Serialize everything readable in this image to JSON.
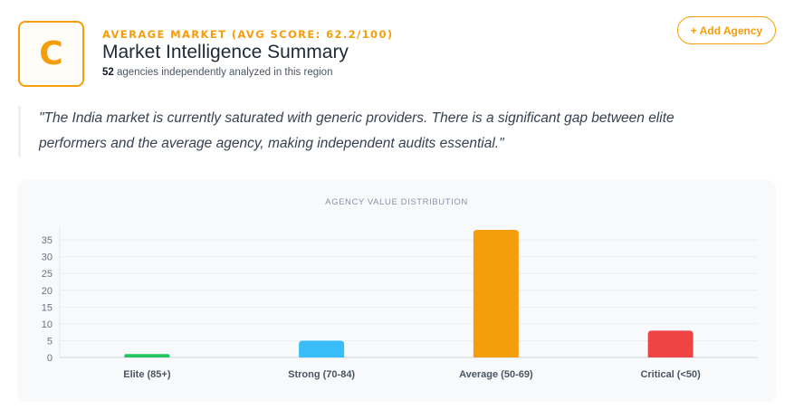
{
  "header": {
    "grade": "C",
    "eyebrow": "AVERAGE MARKET (AVG SCORE: 62.2/100)",
    "title": "Market Intelligence Summary",
    "agency_count": "52",
    "subtitle_rest": " agencies independently analyzed in this region",
    "add_button_label": "+ Add Agency"
  },
  "quote": "\"The India market is currently saturated with generic providers. There is a significant gap between elite performers and the average agency, making independent audits essential.\"",
  "colors": {
    "accent": "#f59e0b",
    "elite": "#22c55e",
    "strong": "#38bdf8",
    "average": "#f59e0b",
    "critical": "#ef4444"
  },
  "chart_data": {
    "type": "bar",
    "title": "AGENCY VALUE DISTRIBUTION",
    "categories": [
      "Elite (85+)",
      "Strong (70-84)",
      "Average (50-69)",
      "Critical (<50)"
    ],
    "values": [
      1,
      5,
      38,
      8
    ],
    "colors": [
      "#22c55e",
      "#38bdf8",
      "#f59e0b",
      "#ef4444"
    ],
    "yticks": [
      0,
      5,
      10,
      15,
      20,
      25,
      30,
      35
    ],
    "ylim": [
      0,
      38
    ],
    "xlabel": "",
    "ylabel": "",
    "grid": true
  }
}
